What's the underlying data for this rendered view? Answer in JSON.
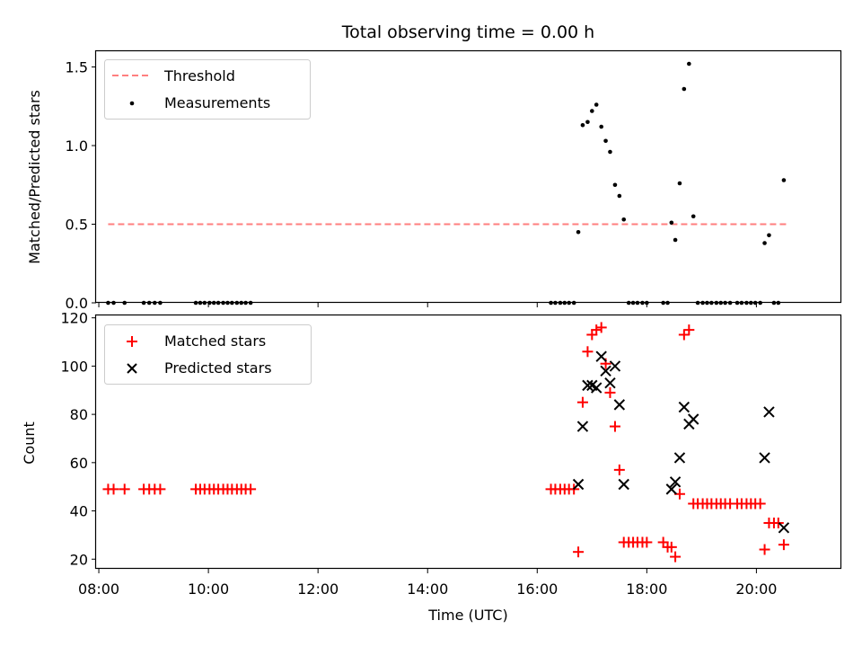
{
  "title": "Total observing time = 0.00 h",
  "xlabel": "Time (UTC)",
  "x_ticks": [
    "08:00",
    "10:00",
    "12:00",
    "14:00",
    "16:00",
    "18:00",
    "20:00"
  ],
  "chart_data": [
    {
      "type": "scatter",
      "ylabel": "Matched/Predicted stars",
      "x_unit": "hours UTC",
      "xlim": [
        7.95,
        21.55
      ],
      "ylim": [
        0,
        1.6
      ],
      "y_ticks": [
        "0.0",
        "0.5",
        "1.0",
        "1.5"
      ],
      "legend": {
        "placement": "top-left",
        "entries": [
          "Threshold",
          "Measurements"
        ]
      },
      "colors": {
        "threshold": "#ff7f7f",
        "measurements": "#000000"
      },
      "threshold": {
        "name": "Threshold",
        "value": 0.5,
        "x_range": [
          8.17,
          20.55
        ]
      },
      "measurements": {
        "name": "Measurements",
        "x": [
          8.17,
          8.27,
          8.47,
          8.82,
          8.92,
          9.02,
          9.12,
          9.77,
          9.85,
          9.93,
          10.02,
          10.1,
          10.18,
          10.27,
          10.35,
          10.43,
          10.52,
          10.6,
          10.68,
          10.77,
          16.25,
          16.33,
          16.42,
          16.5,
          16.58,
          16.67,
          16.75,
          16.83,
          16.92,
          17.0,
          17.08,
          17.17,
          17.25,
          17.33,
          17.42,
          17.5,
          17.58,
          17.67,
          17.75,
          17.83,
          17.92,
          18.0,
          18.3,
          18.38,
          18.45,
          18.52,
          18.6,
          18.68,
          18.77,
          18.85,
          18.93,
          19.02,
          19.1,
          19.18,
          19.27,
          19.35,
          19.43,
          19.52,
          19.65,
          19.73,
          19.82,
          19.9,
          19.98,
          20.07,
          20.15,
          20.23,
          20.32,
          20.4,
          20.5
        ],
        "y": [
          0,
          0,
          0,
          0,
          0,
          0,
          0,
          0,
          0,
          0,
          0,
          0,
          0,
          0,
          0,
          0,
          0,
          0,
          0,
          0,
          0,
          0,
          0,
          0,
          0,
          0,
          0.45,
          1.13,
          1.15,
          1.22,
          1.26,
          1.12,
          1.03,
          0.96,
          0.75,
          0.68,
          0.53,
          0,
          0,
          0,
          0,
          0,
          0,
          0,
          0.51,
          0.4,
          0.76,
          1.36,
          1.52,
          0.55,
          0,
          0,
          0,
          0,
          0,
          0,
          0,
          0,
          0,
          0,
          0,
          0,
          0,
          0,
          0.38,
          0.43,
          0,
          0,
          0.78
        ]
      }
    },
    {
      "type": "scatter",
      "ylabel": "Count",
      "x_unit": "hours UTC",
      "xlim": [
        7.95,
        21.55
      ],
      "ylim": [
        16,
        121
      ],
      "y_ticks": [
        "20",
        "40",
        "60",
        "80",
        "100",
        "120"
      ],
      "legend": {
        "placement": "top-left",
        "entries": [
          "Matched stars",
          "Predicted stars"
        ]
      },
      "colors": {
        "matched": "#ff0000",
        "predicted": "#000000"
      },
      "series": [
        {
          "name": "Matched stars",
          "marker": "+",
          "x": [
            8.17,
            8.27,
            8.47,
            8.82,
            8.92,
            9.02,
            9.12,
            9.77,
            9.85,
            9.93,
            10.02,
            10.1,
            10.18,
            10.27,
            10.35,
            10.43,
            10.52,
            10.6,
            10.68,
            10.77,
            16.25,
            16.33,
            16.42,
            16.5,
            16.58,
            16.67,
            16.75,
            16.83,
            16.92,
            17.0,
            17.08,
            17.17,
            17.25,
            17.33,
            17.42,
            17.5,
            17.58,
            17.67,
            17.75,
            17.83,
            17.92,
            18.0,
            18.3,
            18.38,
            18.45,
            18.52,
            18.6,
            18.68,
            18.77,
            18.85,
            18.93,
            19.02,
            19.1,
            19.18,
            19.27,
            19.35,
            19.43,
            19.52,
            19.65,
            19.73,
            19.82,
            19.9,
            19.98,
            20.07,
            20.15,
            20.23,
            20.32,
            20.4,
            20.5
          ],
          "y": [
            49,
            49,
            49,
            49,
            49,
            49,
            49,
            49,
            49,
            49,
            49,
            49,
            49,
            49,
            49,
            49,
            49,
            49,
            49,
            49,
            49,
            49,
            49,
            49,
            49,
            49,
            23,
            85,
            106,
            113,
            115,
            116,
            101,
            89,
            75,
            57,
            27,
            27,
            27,
            27,
            27,
            27,
            27,
            25,
            25,
            21,
            47,
            113,
            115,
            43,
            43,
            43,
            43,
            43,
            43,
            43,
            43,
            43,
            43,
            43,
            43,
            43,
            43,
            43,
            24,
            35,
            35,
            35,
            26
          ]
        },
        {
          "name": "Predicted stars",
          "marker": "x",
          "x": [
            16.75,
            16.83,
            16.92,
            17.0,
            17.08,
            17.17,
            17.25,
            17.33,
            17.42,
            17.5,
            17.58,
            18.45,
            18.52,
            18.6,
            18.68,
            18.77,
            18.85,
            20.15,
            20.23,
            20.5
          ],
          "y": [
            51,
            75,
            92,
            92,
            91,
            104,
            98,
            93,
            100,
            84,
            51,
            49,
            52,
            62,
            83,
            76,
            78,
            62,
            81,
            33
          ]
        }
      ]
    }
  ]
}
